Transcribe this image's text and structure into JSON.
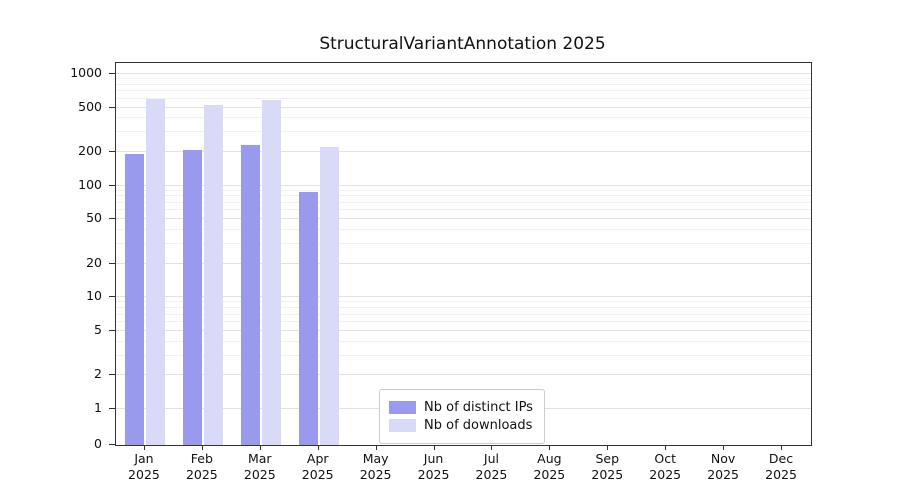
{
  "chart_data": {
    "type": "bar",
    "title": "StructuralVariantAnnotation 2025",
    "categories": [
      "Jan",
      "Feb",
      "Mar",
      "Apr",
      "May",
      "Jun",
      "Jul",
      "Aug",
      "Sep",
      "Oct",
      "Nov",
      "Dec"
    ],
    "year_label": "2025",
    "series": [
      {
        "name": "Nb of distinct IPs",
        "color": "#9999ee",
        "values": [
          190,
          210,
          230,
          88,
          0,
          0,
          0,
          0,
          0,
          0,
          0,
          0
        ]
      },
      {
        "name": "Nb of downloads",
        "color": "#d9d9f8",
        "values": [
          600,
          530,
          580,
          220,
          0,
          0,
          0,
          0,
          0,
          0,
          0,
          0
        ]
      }
    ],
    "y_ticks": [
      0,
      1,
      2,
      5,
      10,
      20,
      50,
      100,
      200,
      500,
      1000
    ],
    "y_minor_ticks": [
      3,
      4,
      6,
      7,
      8,
      9,
      30,
      40,
      60,
      70,
      80,
      90,
      300,
      400,
      600,
      700,
      800,
      900
    ],
    "y_scale": "symlog",
    "ylim": [
      0,
      1200
    ],
    "grid": "on",
    "legend_position": "inside lower center-left"
  }
}
